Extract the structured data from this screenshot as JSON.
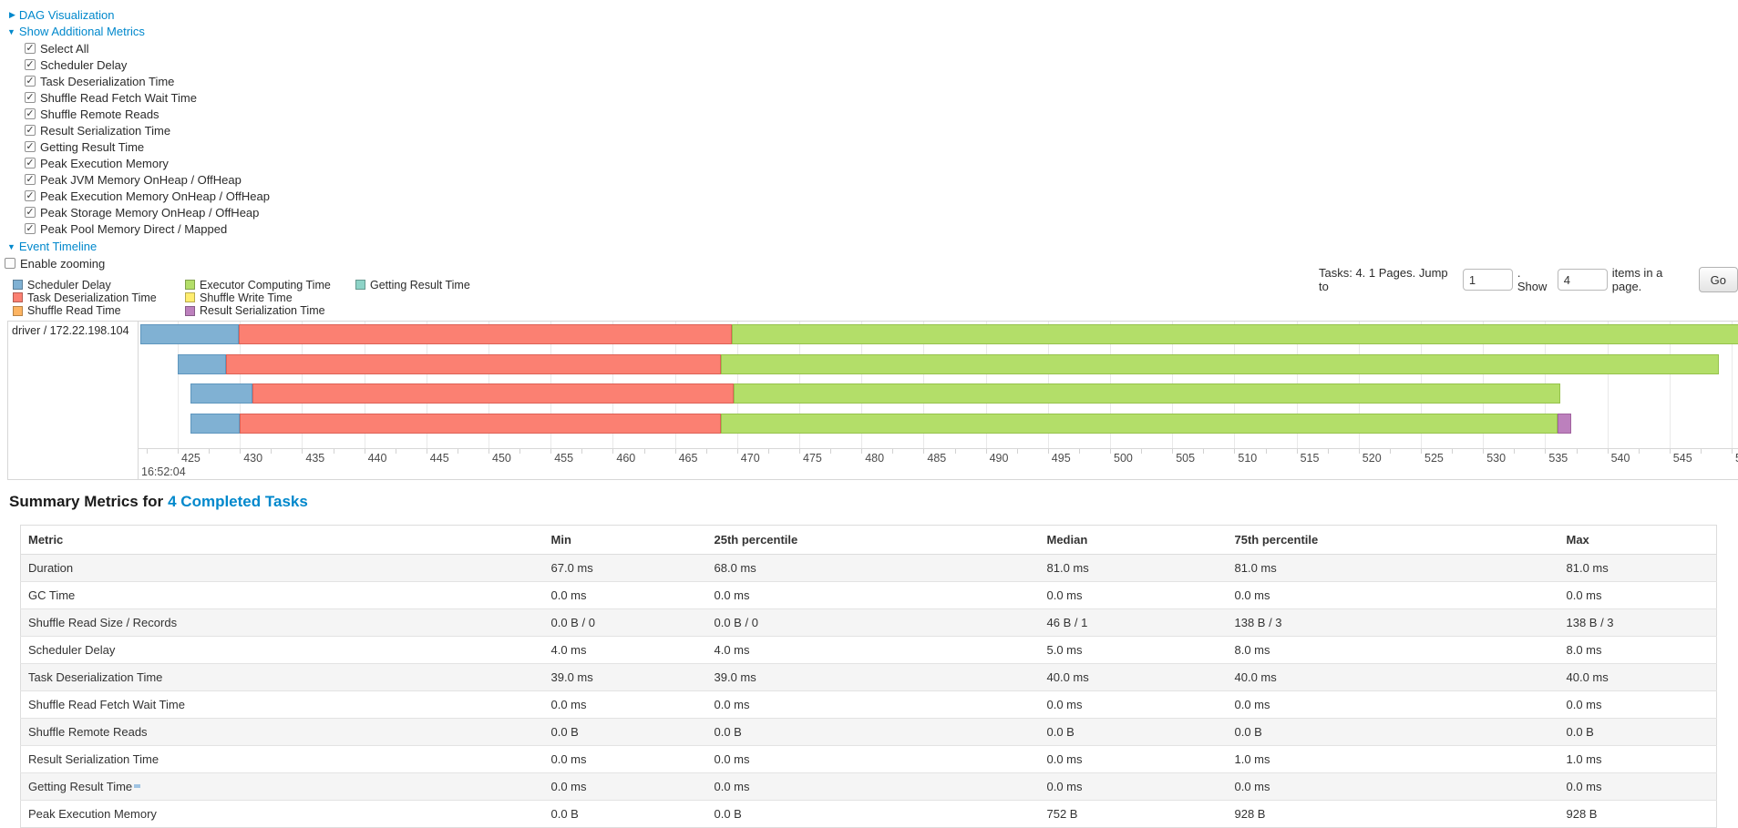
{
  "links": {
    "dag": "DAG Visualization",
    "metrics": "Show Additional Metrics",
    "timeline": "Event Timeline"
  },
  "metrics_panel": {
    "options": [
      {
        "label": "Select All",
        "checked": true
      },
      {
        "label": "Scheduler Delay",
        "checked": true
      },
      {
        "label": "Task Deserialization Time",
        "checked": true
      },
      {
        "label": "Shuffle Read Fetch Wait Time",
        "checked": true
      },
      {
        "label": "Shuffle Remote Reads",
        "checked": true
      },
      {
        "label": "Result Serialization Time",
        "checked": true
      },
      {
        "label": "Getting Result Time",
        "checked": true
      },
      {
        "label": "Peak Execution Memory",
        "checked": true
      },
      {
        "label": "Peak JVM Memory OnHeap / OffHeap",
        "checked": true
      },
      {
        "label": "Peak Execution Memory OnHeap / OffHeap",
        "checked": true
      },
      {
        "label": "Peak Storage Memory OnHeap / OffHeap",
        "checked": true
      },
      {
        "label": "Peak Pool Memory Direct / Mapped",
        "checked": true
      }
    ]
  },
  "enable_zooming": {
    "label": "Enable zooming",
    "checked": false
  },
  "palette": {
    "scheduler_delay": {
      "fill": "#80B1D3",
      "border": "#5E96BE"
    },
    "task_deserialization": {
      "fill": "#FB8072",
      "border": "#DD6156"
    },
    "shuffle_read": {
      "fill": "#FDB462",
      "border": "#E09A45"
    },
    "executor_computing": {
      "fill": "#B3DE69",
      "border": "#96C24C"
    },
    "shuffle_write": {
      "fill": "#FFED6F",
      "border": "#E2D050"
    },
    "result_serialization": {
      "fill": "#BC80BD",
      "border": "#A1619F"
    },
    "getting_result": {
      "fill": "#8DD3C7",
      "border": "#6FB8AA"
    }
  },
  "legend": {
    "columns": [
      [
        {
          "kind": "scheduler_delay",
          "label": "Scheduler Delay"
        },
        {
          "kind": "task_deserialization",
          "label": "Task Deserialization Time"
        },
        {
          "kind": "shuffle_read",
          "label": "Shuffle Read Time"
        }
      ],
      [
        {
          "kind": "executor_computing",
          "label": "Executor Computing Time"
        },
        {
          "kind": "shuffle_write",
          "label": "Shuffle Write Time"
        },
        {
          "kind": "result_serialization",
          "label": "Result Serialization Time"
        }
      ],
      [
        {
          "kind": "getting_result",
          "label": "Getting Result Time"
        }
      ]
    ]
  },
  "pagination": {
    "prefix": "Tasks: 4. 1 Pages. Jump to",
    "jump_value": "1",
    "mid": ". Show",
    "show_value": "4",
    "suffix": "items in a page.",
    "go_label": "Go"
  },
  "chart_data": {
    "type": "timeline",
    "group_label": "driver / 172.22.198.104",
    "axis": {
      "major_label": "16:52:04",
      "tick_start": 425,
      "tick_end": 550,
      "tick_step": 5,
      "minor_tick_step": 2.5,
      "minor_tick_start": 422.5,
      "units": "ms after 16:52:04"
    },
    "tasks": [
      {
        "segments": [
          {
            "kind": "scheduler_delay",
            "start": 422.0,
            "end": 429.9
          },
          {
            "kind": "task_deserialization",
            "start": 429.9,
            "end": 469.6
          },
          {
            "kind": "executor_computing",
            "start": 469.6,
            "end": 552.5
          }
        ]
      },
      {
        "segments": [
          {
            "kind": "scheduler_delay",
            "start": 425.0,
            "end": 428.9
          },
          {
            "kind": "task_deserialization",
            "start": 428.9,
            "end": 468.7
          },
          {
            "kind": "executor_computing",
            "start": 468.7,
            "end": 549.0
          }
        ]
      },
      {
        "segments": [
          {
            "kind": "scheduler_delay",
            "start": 426.0,
            "end": 431.0
          },
          {
            "kind": "task_deserialization",
            "start": 431.0,
            "end": 469.7
          },
          {
            "kind": "executor_computing",
            "start": 469.7,
            "end": 536.2
          }
        ]
      },
      {
        "segments": [
          {
            "kind": "scheduler_delay",
            "start": 426.0,
            "end": 430.0
          },
          {
            "kind": "task_deserialization",
            "start": 430.0,
            "end": 468.7
          },
          {
            "kind": "executor_computing",
            "start": 468.7,
            "end": 536.0
          },
          {
            "kind": "result_serialization",
            "start": 536.0,
            "end": 537.1
          }
        ]
      }
    ]
  },
  "summary": {
    "title_prefix": "Summary Metrics for",
    "title_link": "4 Completed Tasks",
    "columns": [
      "Metric",
      "Min",
      "25th percentile",
      "Median",
      "75th percentile",
      "Max"
    ],
    "rows": [
      {
        "metric": "Duration",
        "values": [
          "67.0 ms",
          "68.0 ms",
          "81.0 ms",
          "81.0 ms",
          "81.0 ms"
        ]
      },
      {
        "metric": "GC Time",
        "values": [
          "0.0 ms",
          "0.0 ms",
          "0.0 ms",
          "0.0 ms",
          "0.0 ms"
        ]
      },
      {
        "metric": "Shuffle Read Size / Records",
        "values": [
          "0.0 B / 0",
          "0.0 B / 0",
          "46 B / 1",
          "138 B / 3",
          "138 B / 3"
        ]
      },
      {
        "metric": "Scheduler Delay",
        "values": [
          "4.0 ms",
          "4.0 ms",
          "5.0 ms",
          "8.0 ms",
          "8.0 ms"
        ]
      },
      {
        "metric": "Task Deserialization Time",
        "values": [
          "39.0 ms",
          "39.0 ms",
          "40.0 ms",
          "40.0 ms",
          "40.0 ms"
        ]
      },
      {
        "metric": "Shuffle Read Fetch Wait Time",
        "values": [
          "0.0 ms",
          "0.0 ms",
          "0.0 ms",
          "0.0 ms",
          "0.0 ms"
        ]
      },
      {
        "metric": "Shuffle Remote Reads",
        "values": [
          "0.0 B",
          "0.0 B",
          "0.0 B",
          "0.0 B",
          "0.0 B"
        ]
      },
      {
        "metric": "Result Serialization Time",
        "values": [
          "0.0 ms",
          "0.0 ms",
          "0.0 ms",
          "1.0 ms",
          "1.0 ms"
        ]
      },
      {
        "metric": "Getting Result Time",
        "values": [
          "0.0 ms",
          "0.0 ms",
          "0.0 ms",
          "0.0 ms",
          "0.0 ms"
        ]
      },
      {
        "metric": "Peak Execution Memory",
        "values": [
          "0.0 B",
          "0.0 B",
          "752 B",
          "928 B",
          "928 B"
        ]
      }
    ]
  }
}
